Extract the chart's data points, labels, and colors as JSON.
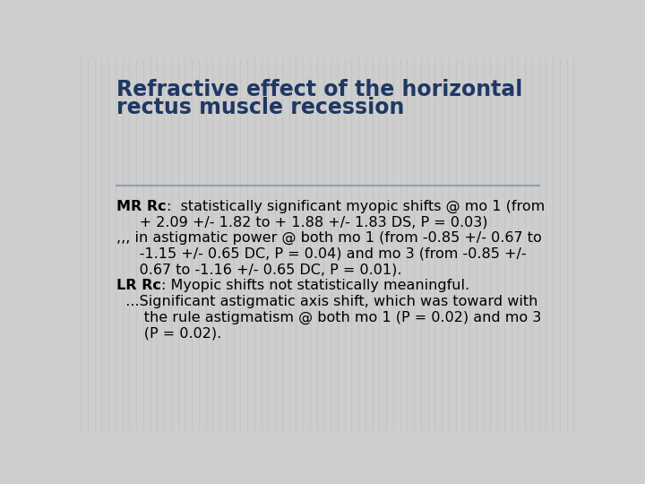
{
  "title_line1": "Refractive effect of the horizontal",
  "title_line2": "rectus muscle recession",
  "title_color": "#1F3864",
  "background_color": "#CECECE",
  "stripe_color": "#C0C0C0",
  "divider_color": "#8BA0B8",
  "body_color": "#000000",
  "title_fontsize": 17,
  "body_fontsize": 11.5,
  "lines": [
    {
      "bold_part": "MR Rc",
      "rest": ":  statistically significant myopic shifts @ mo 1 (from",
      "indent": false
    },
    {
      "bold_part": "",
      "rest": "     + 2.09 +/- 1.82 to + 1.88 +/- 1.83 DS, P = 0.03)",
      "indent": true
    },
    {
      "bold_part": "",
      "rest": ",,, in astigmatic power @ both mo 1 (from -0.85 +/- 0.67 to",
      "indent": false
    },
    {
      "bold_part": "",
      "rest": "     -1.15 +/- 0.65 DC, P = 0.04) and mo 3 (from -0.85 +/-",
      "indent": true
    },
    {
      "bold_part": "",
      "rest": "     0.67 to -1.16 +/- 0.65 DC, P = 0.01).",
      "indent": true
    },
    {
      "bold_part": "LR Rc",
      "rest": ": Myopic shifts not statistically meaningful.",
      "indent": false
    },
    {
      "bold_part": "",
      "rest": "  ...Significant astigmatic axis shift, which was toward with",
      "indent": false
    },
    {
      "bold_part": "",
      "rest": "      the rule astigmatism @ both mo 1 (P = 0.02) and mo 3",
      "indent": true
    },
    {
      "bold_part": "",
      "rest": "      (P = 0.02).",
      "indent": true
    }
  ]
}
